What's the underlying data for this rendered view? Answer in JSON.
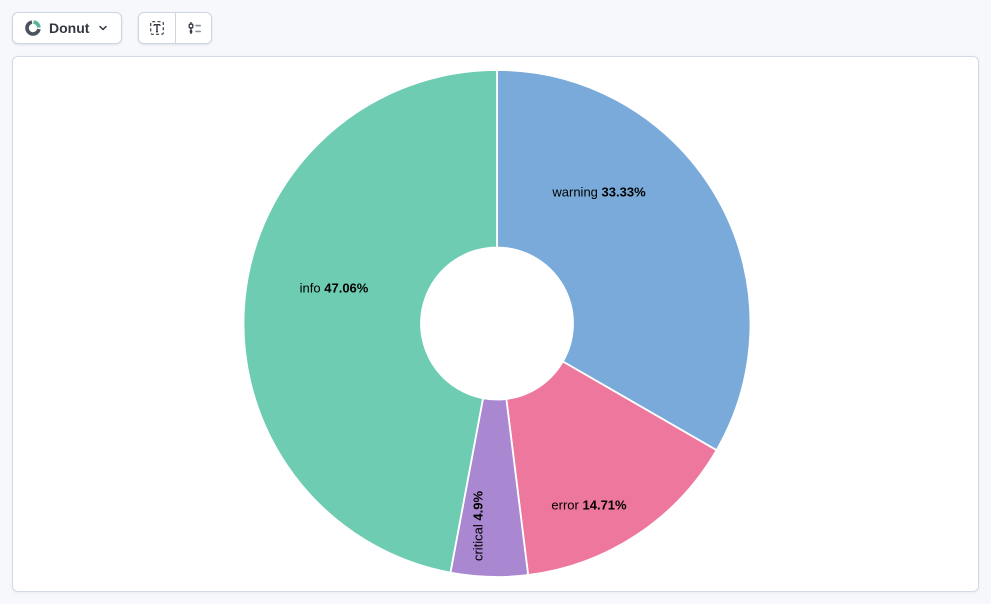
{
  "toolbar": {
    "chart_type": {
      "label": "Donut"
    },
    "value_labels_button": {
      "icon": "value-labels-icon"
    },
    "legend_button": {
      "icon": "legend-icon"
    }
  },
  "colors": {
    "page_background": "#f7f8fc",
    "panel_background": "#ffffff",
    "panel_border": "#d3dae6",
    "label_text": "#000000"
  },
  "chart_data": {
    "type": "pie",
    "subtype": "donut",
    "title": "",
    "legend": "hidden",
    "direction": "clockwise",
    "start": "top",
    "inner_radius_ratio": 0.3,
    "labels_inside": true,
    "slices": [
      {
        "label": "warning",
        "value": 33.33,
        "display": "33.33%",
        "color": "#79AAD9"
      },
      {
        "label": "error",
        "value": 14.71,
        "display": "14.71%",
        "color": "#EE789D"
      },
      {
        "label": "critical",
        "value": 4.9,
        "display": "4.9%",
        "color": "#A987D1"
      },
      {
        "label": "info",
        "value": 47.06,
        "display": "47.06%",
        "color": "#6DCCB1"
      }
    ]
  }
}
